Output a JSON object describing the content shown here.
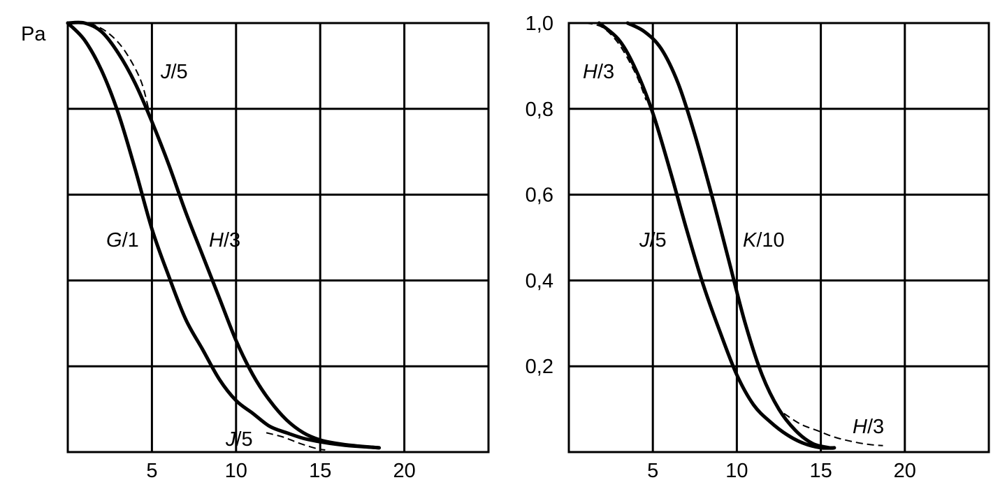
{
  "chart_data": [
    {
      "type": "line",
      "ylabel": "Pa",
      "x_ticks": [
        "5",
        "10",
        "15",
        "20"
      ],
      "xlim": [
        0,
        25
      ],
      "ylim": [
        0,
        1
      ],
      "grid": true,
      "series": [
        {
          "name": "G/1",
          "style": "solid",
          "x": [
            0,
            1,
            2,
            3,
            4,
            5,
            6,
            7,
            8,
            9,
            10,
            11,
            12,
            13,
            14,
            15,
            16,
            17,
            18.5
          ],
          "y": [
            1.0,
            0.96,
            0.89,
            0.79,
            0.66,
            0.52,
            0.41,
            0.31,
            0.24,
            0.17,
            0.12,
            0.09,
            0.06,
            0.045,
            0.032,
            0.024,
            0.018,
            0.014,
            0.01
          ]
        },
        {
          "name": "H/3",
          "style": "solid",
          "x": [
            0,
            1,
            2,
            3,
            4,
            5,
            6,
            7,
            8,
            9,
            10,
            11,
            12,
            13,
            14,
            15,
            16,
            17,
            18.5
          ],
          "y": [
            1.0,
            1.0,
            0.98,
            0.93,
            0.86,
            0.77,
            0.67,
            0.56,
            0.46,
            0.36,
            0.26,
            0.18,
            0.12,
            0.075,
            0.045,
            0.028,
            0.02,
            0.015,
            0.01
          ]
        },
        {
          "name": "J/5",
          "style": "dashed",
          "x": [
            1.3,
            2.3,
            3.3,
            4.3,
            4.8
          ],
          "y": [
            1.0,
            0.98,
            0.94,
            0.87,
            0.8
          ]
        },
        {
          "name": "J/5",
          "style": "dashed",
          "x": [
            11.8,
            12.8,
            13.8,
            14.8,
            15.3
          ],
          "y": [
            0.045,
            0.035,
            0.02,
            0.008,
            0.005
          ]
        }
      ],
      "curve_labels": [
        "J/5",
        "G/1",
        "H/3",
        "J/5"
      ]
    },
    {
      "type": "line",
      "y_ticks": [
        "1,0",
        "0,8",
        "0,6",
        "0,4",
        "0,2"
      ],
      "x_ticks": [
        "5",
        "10",
        "15",
        "20"
      ],
      "xlim": [
        0,
        25
      ],
      "ylim": [
        0,
        1
      ],
      "grid": true,
      "series": [
        {
          "name": "H/3",
          "style": "dashed",
          "x": [
            1.0,
            2.0,
            3.0,
            4.0,
            4.6
          ],
          "y": [
            1.0,
            0.99,
            0.95,
            0.88,
            0.82
          ]
        },
        {
          "name": "J/5",
          "style": "solid",
          "x": [
            1.8,
            3.0,
            4.0,
            5.0,
            6.0,
            7.0,
            8.0,
            9.0,
            10.0,
            11.0,
            12.0,
            13.0,
            14.0,
            15.0,
            15.8
          ],
          "y": [
            1.0,
            0.96,
            0.89,
            0.79,
            0.66,
            0.52,
            0.39,
            0.28,
            0.18,
            0.11,
            0.07,
            0.04,
            0.02,
            0.01,
            0.01
          ]
        },
        {
          "name": "K/10",
          "style": "solid",
          "x": [
            3.5,
            4.5,
            5.5,
            6.5,
            7.5,
            8.5,
            9.5,
            10.5,
            11.5,
            12.5,
            13.5,
            14.5,
            15.5,
            15.8
          ],
          "y": [
            1.0,
            0.98,
            0.94,
            0.86,
            0.74,
            0.6,
            0.45,
            0.3,
            0.18,
            0.1,
            0.05,
            0.02,
            0.01,
            0.01
          ]
        },
        {
          "name": "H/3",
          "style": "dashed",
          "x": [
            12.8,
            13.8,
            14.8,
            15.8,
            16.8,
            17.8,
            18.7
          ],
          "y": [
            0.09,
            0.065,
            0.05,
            0.035,
            0.025,
            0.018,
            0.015
          ]
        }
      ],
      "curve_labels": [
        "H/3",
        "J/5",
        "K/10",
        "H/3"
      ]
    }
  ]
}
